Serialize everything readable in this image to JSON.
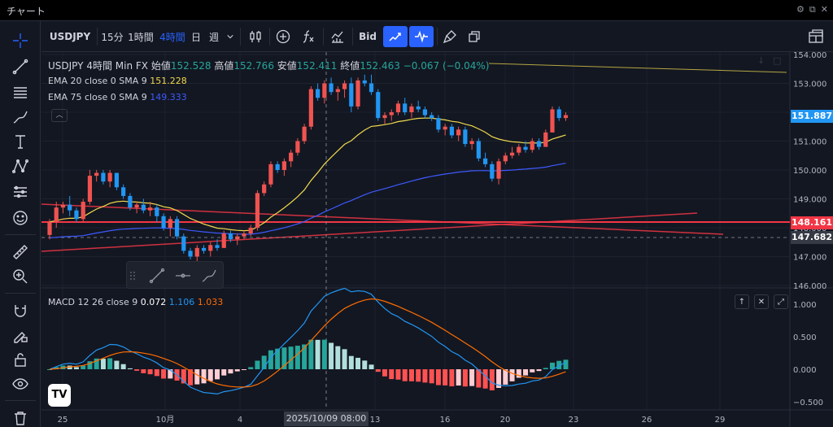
{
  "window": {
    "title": "チャート"
  },
  "toolbar": {
    "symbol": "USDJPY",
    "intervals": [
      "15分",
      "1時間",
      "4時間",
      "日",
      "週"
    ],
    "active_interval": "4時間",
    "price_type": "Bid"
  },
  "legend": {
    "symbol": "USDJPY",
    "interval": "4時間",
    "source": "Min FX",
    "open_label": "始値",
    "open": "152.528",
    "high_label": "高値",
    "high": "152.766",
    "low_label": "安値",
    "low": "152.411",
    "close_label": "終値",
    "close": "152.463",
    "change": "−0.067 (−0.04%)"
  },
  "indicators": {
    "ema20": {
      "label": "EMA 20 close 0 SMA 9",
      "value": "151.228",
      "color": "#f0d94d"
    },
    "ema75": {
      "label": "EMA 75 close 0 SMA 9",
      "value": "149.333",
      "color": "#3d5afe"
    }
  },
  "macd": {
    "label": "MACD 12 26 close 9",
    "hist": "0.072",
    "macd": "1.106",
    "signal": "1.033",
    "colors": {
      "hist": "#ffffff",
      "macd": "#2196f3",
      "signal": "#ff6d00"
    }
  },
  "price_axis": {
    "ticks": [
      "154.000",
      "153.000",
      "152.000",
      "151.000",
      "150.000",
      "149.000",
      "148.000",
      "147.000",
      "146.000"
    ],
    "last_price": "151.887",
    "red_line": "148.161",
    "crosshair": "147.682"
  },
  "macd_axis": {
    "ticks": [
      "1.000",
      "0.500",
      "0.000",
      "−0.500"
    ]
  },
  "time_axis": {
    "ticks": [
      "25",
      "10月",
      "4",
      "13",
      "16",
      "20",
      "23",
      "26",
      "29"
    ],
    "crosshair_time": "2025/10/09 08:00"
  },
  "colors": {
    "up": "#26a69a",
    "down": "#ef5350",
    "bull_candle": "#ef5350",
    "bear_candle": "#2196f3",
    "bg": "#131722"
  },
  "chart_data": {
    "type": "candlestick",
    "symbol": "USDJPY",
    "interval": "4時間",
    "ylim": [
      146,
      154
    ],
    "candles": [
      [
        147.75,
        148.3,
        147.6,
        148.2
      ],
      [
        148.2,
        148.9,
        148.0,
        148.7
      ],
      [
        148.7,
        148.9,
        148.5,
        148.8
      ],
      [
        148.8,
        149.1,
        148.4,
        148.6
      ],
      [
        148.6,
        148.7,
        148.2,
        148.3
      ],
      [
        148.3,
        149.0,
        148.2,
        148.9
      ],
      [
        148.9,
        150.0,
        148.8,
        149.8
      ],
      [
        149.8,
        150.0,
        149.6,
        149.9
      ],
      [
        149.9,
        150.0,
        149.5,
        149.6
      ],
      [
        149.6,
        150.0,
        149.4,
        149.9
      ],
      [
        149.9,
        149.9,
        149.3,
        149.4
      ],
      [
        149.4,
        149.5,
        149.0,
        149.1
      ],
      [
        149.1,
        149.2,
        148.6,
        148.7
      ],
      [
        148.7,
        148.9,
        148.5,
        148.8
      ],
      [
        148.8,
        149.0,
        148.5,
        148.6
      ],
      [
        148.6,
        148.9,
        148.4,
        148.7
      ],
      [
        148.7,
        148.8,
        148.2,
        148.4
      ],
      [
        148.4,
        148.5,
        147.9,
        148.0
      ],
      [
        148.0,
        148.4,
        147.7,
        148.3
      ],
      [
        148.3,
        148.4,
        147.6,
        147.7
      ],
      [
        147.7,
        147.8,
        147.1,
        147.2
      ],
      [
        147.2,
        147.3,
        146.9,
        147.0
      ],
      [
        147.0,
        147.4,
        146.8,
        147.3
      ],
      [
        147.3,
        147.4,
        147.1,
        147.2
      ],
      [
        147.2,
        147.5,
        147.0,
        147.4
      ],
      [
        147.4,
        147.6,
        147.2,
        147.3
      ],
      [
        147.3,
        147.9,
        147.3,
        147.8
      ],
      [
        147.8,
        147.9,
        147.5,
        147.6
      ],
      [
        147.6,
        147.8,
        147.4,
        147.7
      ],
      [
        147.7,
        147.9,
        147.6,
        147.8
      ],
      [
        147.8,
        148.1,
        147.7,
        148.0
      ],
      [
        148.0,
        149.3,
        147.9,
        149.2
      ],
      [
        149.2,
        149.6,
        149.1,
        149.5
      ],
      [
        149.5,
        150.3,
        149.4,
        150.2
      ],
      [
        150.2,
        150.3,
        149.9,
        150.0
      ],
      [
        150.0,
        150.4,
        149.8,
        150.3
      ],
      [
        150.3,
        150.7,
        150.1,
        150.6
      ],
      [
        150.6,
        151.1,
        150.5,
        151.0
      ],
      [
        151.0,
        151.6,
        150.9,
        151.5
      ],
      [
        151.5,
        152.9,
        151.4,
        152.8
      ],
      [
        152.8,
        153.0,
        152.4,
        152.5
      ],
      [
        152.5,
        153.1,
        152.3,
        153.0
      ],
      [
        153.0,
        153.2,
        152.6,
        152.7
      ],
      [
        152.7,
        152.9,
        152.4,
        152.8
      ],
      [
        152.8,
        153.1,
        152.5,
        153.0
      ],
      [
        153.0,
        153.2,
        152.0,
        152.2
      ],
      [
        152.2,
        153.2,
        152.1,
        153.1
      ],
      [
        153.1,
        153.3,
        152.9,
        153.0
      ],
      [
        153.0,
        153.3,
        152.6,
        152.7
      ],
      [
        152.7,
        152.8,
        151.7,
        151.8
      ],
      [
        151.8,
        152.0,
        151.6,
        151.9
      ],
      [
        151.9,
        152.1,
        151.7,
        152.0
      ],
      [
        152.0,
        152.4,
        151.9,
        152.3
      ],
      [
        152.3,
        152.5,
        151.9,
        152.0
      ],
      [
        152.0,
        152.3,
        151.8,
        152.2
      ],
      [
        152.2,
        152.4,
        152.0,
        152.1
      ],
      [
        152.1,
        152.2,
        151.8,
        151.9
      ],
      [
        151.9,
        152.0,
        151.7,
        151.8
      ],
      [
        151.8,
        151.9,
        151.3,
        151.4
      ],
      [
        151.4,
        151.6,
        151.2,
        151.5
      ],
      [
        151.5,
        151.6,
        151.1,
        151.2
      ],
      [
        151.2,
        151.5,
        151.0,
        151.4
      ],
      [
        151.4,
        151.5,
        150.8,
        150.9
      ],
      [
        150.9,
        151.1,
        150.7,
        151.0
      ],
      [
        151.0,
        151.1,
        150.3,
        150.4
      ],
      [
        150.4,
        150.6,
        150.1,
        150.2
      ],
      [
        150.2,
        150.3,
        149.6,
        149.7
      ],
      [
        149.7,
        150.4,
        149.5,
        150.3
      ],
      [
        150.3,
        150.6,
        150.2,
        150.5
      ],
      [
        150.5,
        150.8,
        150.4,
        150.6
      ],
      [
        150.6,
        150.9,
        150.5,
        150.8
      ],
      [
        150.8,
        151.0,
        150.6,
        150.7
      ],
      [
        150.7,
        151.1,
        150.6,
        151.0
      ],
      [
        151.0,
        151.1,
        150.7,
        150.8
      ],
      [
        150.8,
        151.4,
        150.8,
        151.3
      ],
      [
        151.3,
        152.2,
        151.3,
        152.1
      ],
      [
        152.1,
        152.2,
        151.7,
        151.8
      ],
      [
        151.8,
        152.0,
        151.7,
        151.9
      ]
    ]
  }
}
